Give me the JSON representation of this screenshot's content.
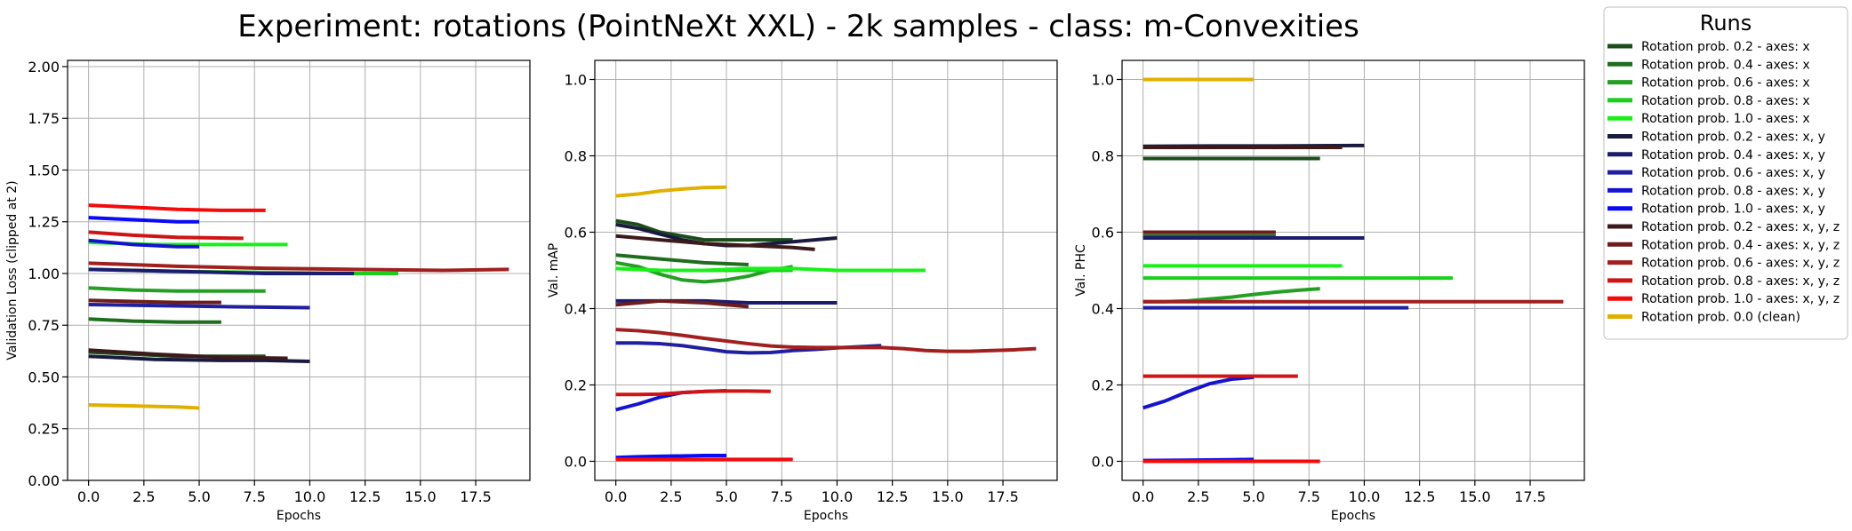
{
  "title": "Experiment: rotations (PointNeXt XXL) - 2k samples - class: m-Convexities",
  "legend": {
    "title": "Runs",
    "placement": "upper-right-outside",
    "entries": [
      {
        "label": "Rotation prob. 0.2 - axes: x",
        "color": "#1b4d1b"
      },
      {
        "label": "Rotation prob. 0.4 - axes: x",
        "color": "#1e6e1e"
      },
      {
        "label": "Rotation prob. 0.6 - axes: x",
        "color": "#23a023"
      },
      {
        "label": "Rotation prob. 0.8 - axes: x",
        "color": "#1ccf1c"
      },
      {
        "label": "Rotation prob. 1.0 - axes: x",
        "color": "#19f019"
      },
      {
        "label": "Rotation prob. 0.2 - axes: x, y",
        "color": "#1a1a40"
      },
      {
        "label": "Rotation prob. 0.4 - axes: x, y",
        "color": "#1c1c6e"
      },
      {
        "label": "Rotation prob. 0.6 - axes: x, y",
        "color": "#1f1fa0"
      },
      {
        "label": "Rotation prob. 0.8 - axes: x, y",
        "color": "#1414d0"
      },
      {
        "label": "Rotation prob. 1.0 - axes: x, y",
        "color": "#0a0af5"
      },
      {
        "label": "Rotation prob. 0.2 - axes: x, y, z",
        "color": "#3d1a1a"
      },
      {
        "label": "Rotation prob. 0.4 - axes: x, y, z",
        "color": "#6e1c1c"
      },
      {
        "label": "Rotation prob. 0.6 - axes: x, y, z",
        "color": "#a01f1f"
      },
      {
        "label": "Rotation prob. 0.8 - axes: x, y, z",
        "color": "#d01414"
      },
      {
        "label": "Rotation prob. 1.0 - axes: x, y, z",
        "color": "#f50a0a"
      },
      {
        "label": "Rotation prob. 0.0 (clean)",
        "color": "#e0b000"
      }
    ]
  },
  "chart_data": [
    {
      "type": "line",
      "xlabel": "Epochs",
      "ylabel": "Validation Loss (clipped at 2)",
      "xlim": [
        -0.95,
        19.95
      ],
      "ylim": [
        0,
        2.03
      ],
      "xticks": [
        0,
        2.5,
        5,
        7.5,
        10,
        12.5,
        15,
        17.5
      ],
      "xtick_labels": [
        "0.0",
        "2.5",
        "5.0",
        "7.5",
        "10.0",
        "12.5",
        "15.0",
        "17.5"
      ],
      "yticks": [
        0,
        0.25,
        0.5,
        0.75,
        1.0,
        1.25,
        1.5,
        1.75,
        2.0
      ],
      "ytick_labels": [
        "0.00",
        "0.25",
        "0.50",
        "0.75",
        "1.00",
        "1.25",
        "1.50",
        "1.75",
        "2.00"
      ],
      "grid": true,
      "series": [
        {
          "color": "#1b4d1b",
          "x": [
            0,
            2,
            4,
            6,
            8
          ],
          "y": [
            0.62,
            0.61,
            0.6,
            0.6,
            0.6
          ]
        },
        {
          "color": "#1e6e1e",
          "x": [
            0,
            2,
            4,
            6
          ],
          "y": [
            0.78,
            0.77,
            0.765,
            0.765
          ]
        },
        {
          "color": "#23a023",
          "x": [
            0,
            2,
            4,
            6,
            8
          ],
          "y": [
            0.93,
            0.92,
            0.915,
            0.915,
            0.915
          ]
        },
        {
          "color": "#1ccf1c",
          "x": [
            0,
            4,
            8,
            12,
            14
          ],
          "y": [
            1.02,
            1.01,
            1.005,
            1.0,
            1.0
          ]
        },
        {
          "color": "#19f019",
          "x": [
            0,
            3,
            6,
            9
          ],
          "y": [
            1.15,
            1.14,
            1.14,
            1.14
          ]
        },
        {
          "color": "#1a1a40",
          "x": [
            0,
            3,
            6,
            8,
            10
          ],
          "y": [
            0.6,
            0.585,
            0.58,
            0.58,
            0.575
          ]
        },
        {
          "color": "#1c1c6e",
          "x": [
            0,
            4,
            8,
            12
          ],
          "y": [
            1.02,
            1.01,
            1.0,
            1.0
          ]
        },
        {
          "color": "#1f1fa0",
          "x": [
            0,
            3,
            6,
            10
          ],
          "y": [
            0.85,
            0.845,
            0.84,
            0.835
          ]
        },
        {
          "color": "#1414d0",
          "x": [
            0,
            2,
            4,
            5
          ],
          "y": [
            1.16,
            1.14,
            1.13,
            1.13
          ]
        },
        {
          "color": "#0a0af5",
          "x": [
            0,
            2,
            4,
            5
          ],
          "y": [
            1.27,
            1.26,
            1.25,
            1.25
          ]
        },
        {
          "color": "#3d1a1a",
          "x": [
            0,
            3,
            6,
            9
          ],
          "y": [
            0.63,
            0.61,
            0.595,
            0.59
          ]
        },
        {
          "color": "#6e1c1c",
          "x": [
            0,
            2,
            4,
            6
          ],
          "y": [
            0.87,
            0.865,
            0.86,
            0.86
          ]
        },
        {
          "color": "#a01f1f",
          "x": [
            0,
            4,
            8,
            12,
            16,
            19
          ],
          "y": [
            1.05,
            1.035,
            1.025,
            1.02,
            1.015,
            1.02
          ]
        },
        {
          "color": "#d01414",
          "x": [
            0,
            2,
            4,
            7
          ],
          "y": [
            1.2,
            1.185,
            1.175,
            1.17
          ]
        },
        {
          "color": "#f50a0a",
          "x": [
            0,
            2,
            4,
            6,
            8
          ],
          "y": [
            1.33,
            1.32,
            1.31,
            1.305,
            1.305
          ]
        },
        {
          "color": "#e0b000",
          "x": [
            0,
            2,
            4,
            5
          ],
          "y": [
            0.365,
            0.36,
            0.355,
            0.35
          ]
        }
      ]
    },
    {
      "type": "line",
      "xlabel": "Epochs",
      "ylabel": "Val. mAP",
      "xlim": [
        -0.95,
        19.95
      ],
      "ylim": [
        -0.05,
        1.05
      ],
      "xticks": [
        0,
        2.5,
        5,
        7.5,
        10,
        12.5,
        15,
        17.5
      ],
      "xtick_labels": [
        "0.0",
        "2.5",
        "5.0",
        "7.5",
        "10.0",
        "12.5",
        "15.0",
        "17.5"
      ],
      "yticks": [
        0,
        0.2,
        0.4,
        0.6,
        0.8,
        1.0
      ],
      "ytick_labels": [
        "0.0",
        "0.2",
        "0.4",
        "0.6",
        "0.8",
        "1.0"
      ],
      "grid": true,
      "series": [
        {
          "color": "#1b4d1b",
          "x": [
            0,
            1,
            2,
            3,
            4,
            5,
            6,
            7,
            8
          ],
          "y": [
            0.63,
            0.62,
            0.6,
            0.59,
            0.58,
            0.58,
            0.58,
            0.58,
            0.58
          ]
        },
        {
          "color": "#1e6e1e",
          "x": [
            0,
            2,
            4,
            6
          ],
          "y": [
            0.54,
            0.53,
            0.52,
            0.515
          ]
        },
        {
          "color": "#23a023",
          "x": [
            0,
            1,
            2,
            3,
            4,
            5,
            6,
            7,
            8
          ],
          "y": [
            0.52,
            0.51,
            0.49,
            0.475,
            0.47,
            0.475,
            0.485,
            0.5,
            0.51
          ]
        },
        {
          "color": "#1ccf1c",
          "x": [
            0,
            2,
            4,
            6,
            8
          ],
          "y": [
            0.505,
            0.5,
            0.5,
            0.5,
            0.5
          ]
        },
        {
          "color": "#19f019",
          "x": [
            0,
            2,
            4,
            6,
            8,
            10,
            12,
            14
          ],
          "y": [
            0.505,
            0.5,
            0.5,
            0.505,
            0.505,
            0.5,
            0.5,
            0.5
          ]
        },
        {
          "color": "#1a1a40",
          "x": [
            0,
            1,
            2,
            3,
            4,
            5,
            6,
            7,
            8,
            9,
            10
          ],
          "y": [
            0.62,
            0.61,
            0.595,
            0.58,
            0.57,
            0.565,
            0.565,
            0.57,
            0.575,
            0.58,
            0.585
          ]
        },
        {
          "color": "#1c1c6e",
          "x": [
            0,
            2,
            4,
            6,
            8,
            10
          ],
          "y": [
            0.42,
            0.42,
            0.42,
            0.415,
            0.415,
            0.415
          ]
        },
        {
          "color": "#1f1fa0",
          "x": [
            0,
            1,
            2,
            3,
            4,
            5,
            6,
            7,
            8,
            9,
            10,
            11,
            12
          ],
          "y": [
            0.31,
            0.31,
            0.308,
            0.303,
            0.295,
            0.287,
            0.284,
            0.285,
            0.29,
            0.293,
            0.297,
            0.3,
            0.303
          ]
        },
        {
          "color": "#1414d0",
          "x": [
            0,
            1,
            2,
            3,
            4,
            5
          ],
          "y": [
            0.135,
            0.15,
            0.168,
            0.18,
            0.183,
            0.185
          ]
        },
        {
          "color": "#0a0af5",
          "x": [
            0,
            1,
            2,
            3,
            4,
            5
          ],
          "y": [
            0.01,
            0.012,
            0.013,
            0.014,
            0.015,
            0.015
          ]
        },
        {
          "color": "#3d1a1a",
          "x": [
            0,
            2,
            4,
            6,
            8,
            9
          ],
          "y": [
            0.59,
            0.58,
            0.57,
            0.565,
            0.56,
            0.555
          ]
        },
        {
          "color": "#6e1c1c",
          "x": [
            0,
            2,
            4,
            6
          ],
          "y": [
            0.41,
            0.42,
            0.415,
            0.405
          ]
        },
        {
          "color": "#a01f1f",
          "x": [
            0,
            1,
            2,
            3,
            4,
            5,
            6,
            7,
            8,
            9,
            10,
            11,
            12,
            13,
            14,
            15,
            16,
            17,
            18,
            19
          ],
          "y": [
            0.345,
            0.342,
            0.337,
            0.33,
            0.322,
            0.315,
            0.308,
            0.302,
            0.299,
            0.298,
            0.298,
            0.298,
            0.298,
            0.295,
            0.29,
            0.288,
            0.288,
            0.29,
            0.292,
            0.295
          ]
        },
        {
          "color": "#d01414",
          "x": [
            0,
            1,
            2,
            3,
            4,
            5,
            6,
            7
          ],
          "y": [
            0.175,
            0.175,
            0.176,
            0.18,
            0.183,
            0.184,
            0.184,
            0.183
          ]
        },
        {
          "color": "#f50a0a",
          "x": [
            0,
            2,
            4,
            6,
            8
          ],
          "y": [
            0.005,
            0.005,
            0.005,
            0.005,
            0.005
          ]
        },
        {
          "color": "#e0b000",
          "x": [
            0,
            1,
            2,
            3,
            4,
            5
          ],
          "y": [
            0.695,
            0.7,
            0.708,
            0.713,
            0.717,
            0.718
          ]
        }
      ]
    },
    {
      "type": "line",
      "xlabel": "Epochs",
      "ylabel": "Val. PHC",
      "xlim": [
        -0.95,
        19.95
      ],
      "ylim": [
        -0.05,
        1.05
      ],
      "xticks": [
        0,
        2.5,
        5,
        7.5,
        10,
        12.5,
        15,
        17.5
      ],
      "xtick_labels": [
        "0.0",
        "2.5",
        "5.0",
        "7.5",
        "10.0",
        "12.5",
        "15.0",
        "17.5"
      ],
      "yticks": [
        0,
        0.2,
        0.4,
        0.6,
        0.8,
        1.0
      ],
      "ytick_labels": [
        "0.0",
        "0.2",
        "0.4",
        "0.6",
        "0.8",
        "1.0"
      ],
      "grid": true,
      "series": [
        {
          "color": "#1b4d1b",
          "x": [
            0,
            4,
            8
          ],
          "y": [
            0.793,
            0.793,
            0.793
          ]
        },
        {
          "color": "#1e6e1e",
          "x": [
            0,
            3,
            6
          ],
          "y": [
            0.59,
            0.59,
            0.59
          ]
        },
        {
          "color": "#23a023",
          "x": [
            0,
            1,
            2,
            3,
            4,
            5,
            6,
            7,
            8
          ],
          "y": [
            0.418,
            0.418,
            0.42,
            0.425,
            0.43,
            0.437,
            0.443,
            0.448,
            0.452
          ]
        },
        {
          "color": "#1ccf1c",
          "x": [
            0,
            4,
            8,
            12,
            14
          ],
          "y": [
            0.48,
            0.48,
            0.48,
            0.48,
            0.48
          ]
        },
        {
          "color": "#19f019",
          "x": [
            0,
            3,
            6,
            9
          ],
          "y": [
            0.512,
            0.512,
            0.512,
            0.512
          ]
        },
        {
          "color": "#1a1a40",
          "x": [
            0,
            3,
            6,
            10
          ],
          "y": [
            0.825,
            0.826,
            0.826,
            0.827
          ]
        },
        {
          "color": "#1c1c6e",
          "x": [
            0,
            3,
            6,
            10
          ],
          "y": [
            0.585,
            0.585,
            0.585,
            0.585
          ]
        },
        {
          "color": "#1f1fa0",
          "x": [
            0,
            4,
            8,
            12
          ],
          "y": [
            0.402,
            0.402,
            0.402,
            0.402
          ]
        },
        {
          "color": "#1414d0",
          "x": [
            0,
            1,
            2,
            3,
            4,
            5
          ],
          "y": [
            0.14,
            0.158,
            0.182,
            0.203,
            0.215,
            0.22
          ]
        },
        {
          "color": "#0a0af5",
          "x": [
            0,
            2,
            4,
            5
          ],
          "y": [
            0.002,
            0.003,
            0.004,
            0.005
          ]
        },
        {
          "color": "#3d1a1a",
          "x": [
            0,
            3,
            6,
            9
          ],
          "y": [
            0.822,
            0.822,
            0.822,
            0.822
          ]
        },
        {
          "color": "#6e1c1c",
          "x": [
            0,
            3,
            6
          ],
          "y": [
            0.6,
            0.6,
            0.6
          ]
        },
        {
          "color": "#a01f1f",
          "x": [
            0,
            5,
            10,
            15,
            19
          ],
          "y": [
            0.418,
            0.418,
            0.418,
            0.418,
            0.418
          ]
        },
        {
          "color": "#d01414",
          "x": [
            0,
            3,
            7
          ],
          "y": [
            0.223,
            0.223,
            0.223
          ]
        },
        {
          "color": "#f50a0a",
          "x": [
            0,
            4,
            8
          ],
          "y": [
            0.0,
            0.0,
            0.0
          ]
        },
        {
          "color": "#e0b000",
          "x": [
            0,
            3,
            5
          ],
          "y": [
            1.0,
            1.0,
            1.0
          ]
        }
      ]
    }
  ]
}
